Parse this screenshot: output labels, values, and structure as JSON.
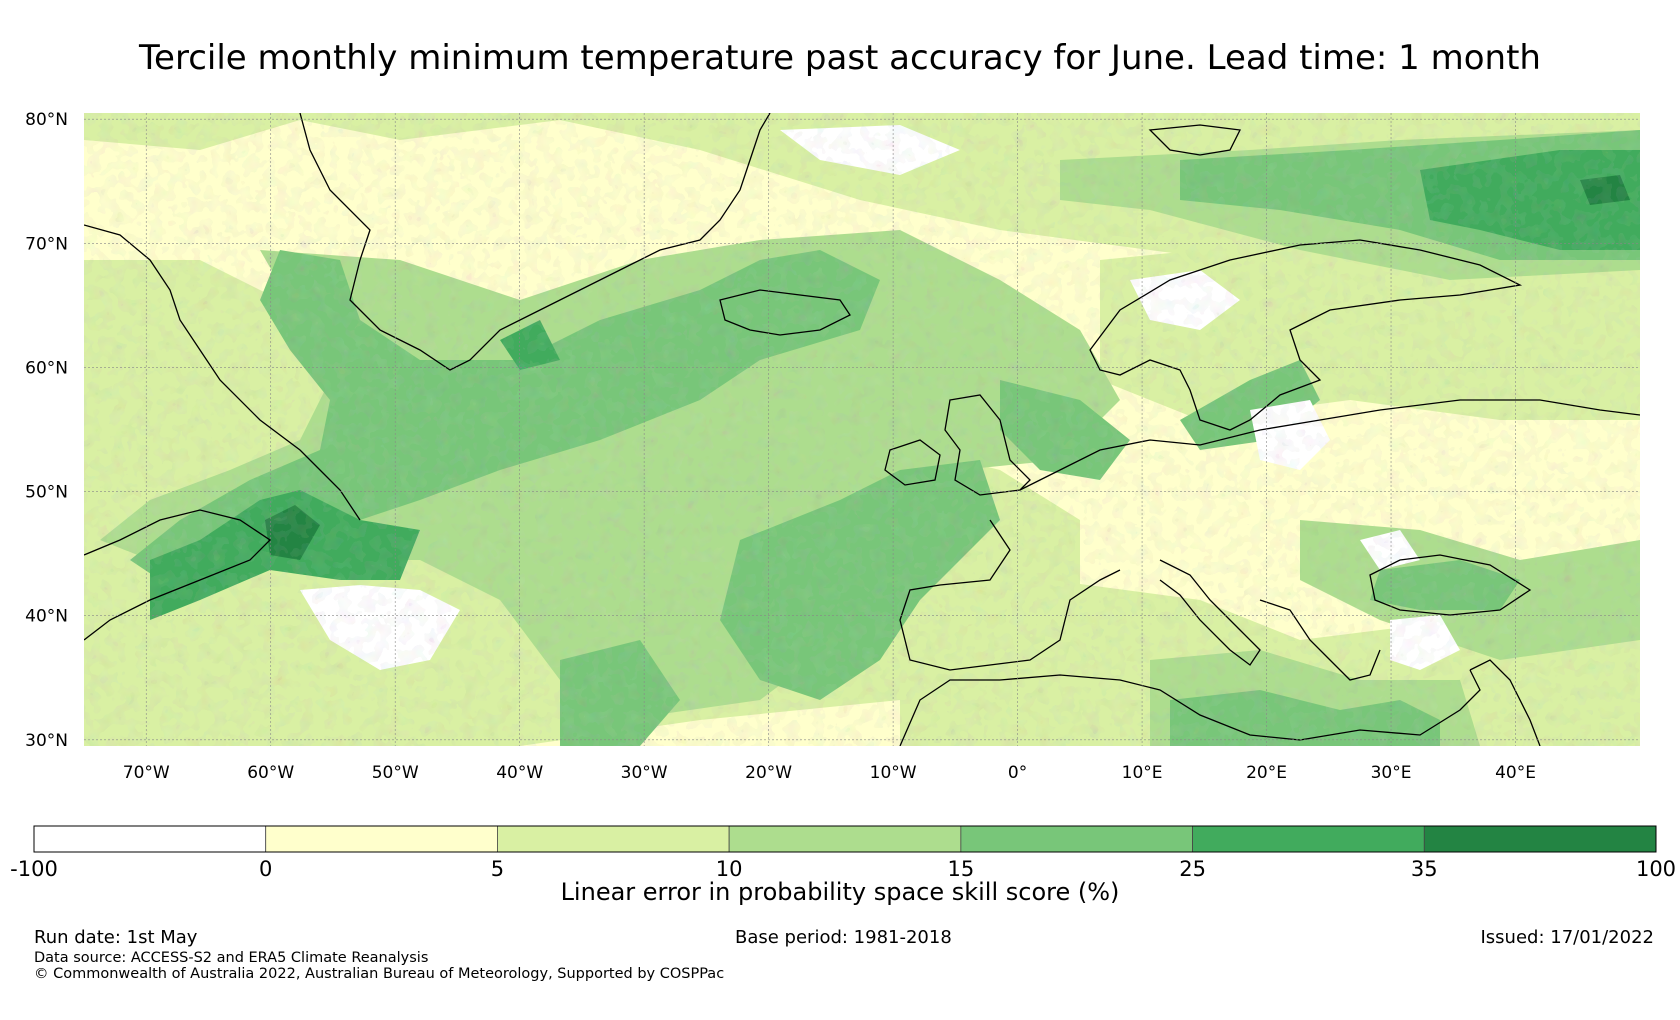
{
  "title": "Tercile monthly minimum temperature past accuracy for June. Lead time: 1 month",
  "map": {
    "lat_labels": [
      "80°N",
      "70°N",
      "60°N",
      "50°N",
      "40°N",
      "30°N"
    ],
    "lat_values": [
      80,
      70,
      60,
      50,
      40,
      30
    ],
    "lon_labels": [
      "70°W",
      "60°W",
      "50°W",
      "40°W",
      "30°W",
      "20°W",
      "10°W",
      "0°",
      "10°E",
      "20°E",
      "30°E",
      "40°E"
    ],
    "lon_values": [
      -70,
      -60,
      -50,
      -40,
      -30,
      -20,
      -10,
      0,
      10,
      20,
      30,
      40
    ],
    "lon_range": [
      -75,
      50
    ],
    "lat_range": [
      29.5,
      80.5
    ],
    "gridlines": true,
    "land_outlines": [
      "Greenland",
      "Iceland",
      "Svalbard",
      "North America",
      "British Isles",
      "Scandinavia",
      "Europe",
      "North Africa",
      "Black Sea"
    ]
  },
  "colorbar": {
    "title": "Linear error in probability space skill score (%)",
    "ticks": [
      "-100",
      "0",
      "5",
      "10",
      "15",
      "25",
      "35",
      "100"
    ],
    "bins": [
      {
        "from": -100,
        "to": 0,
        "color": "#ffffff"
      },
      {
        "from": 0,
        "to": 5,
        "color": "#ffffcc"
      },
      {
        "from": 5,
        "to": 10,
        "color": "#d9f0a3"
      },
      {
        "from": 10,
        "to": 15,
        "color": "#addd8e"
      },
      {
        "from": 15,
        "to": 25,
        "color": "#78c679"
      },
      {
        "from": 25,
        "to": 35,
        "color": "#41ab5d"
      },
      {
        "from": 35,
        "to": 100,
        "color": "#238443"
      }
    ]
  },
  "footer": {
    "run_date": "Run date: 1st May",
    "base_period": "Base period: 1981-2018",
    "issued": "Issued: 17/01/2022",
    "data_source": "Data source: ACCESS-S2 and ERA5 Climate Reanalysis",
    "copyright": "© Commonwealth of Australia 2022, Australian Bureau of Meteorology, Supported by COSPPac"
  }
}
